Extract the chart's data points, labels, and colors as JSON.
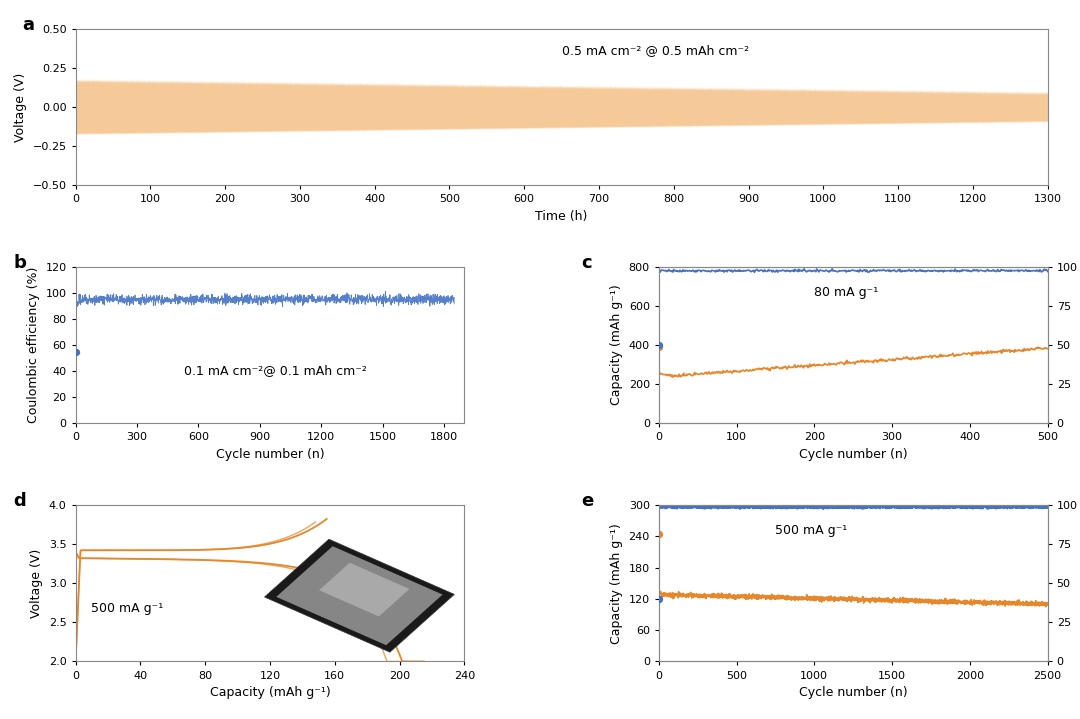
{
  "panel_a": {
    "label": "a",
    "xlabel": "Time (h)",
    "ylabel": "Voltage (V)",
    "xlim": [
      0,
      1300
    ],
    "ylim": [
      -0.5,
      0.5
    ],
    "xticks": [
      0,
      100,
      200,
      300,
      400,
      500,
      600,
      700,
      800,
      900,
      1000,
      1100,
      1200,
      1300
    ],
    "yticks": [
      -0.5,
      -0.25,
      0.0,
      0.25,
      0.5
    ],
    "annotation": "0.5 mA cm⁻² @ 0.5 mAh cm⁻²",
    "color": "#F5C087",
    "amplitude_start": 0.17,
    "amplitude_end": 0.09,
    "period": 2.0
  },
  "panel_b": {
    "label": "b",
    "xlabel": "Cycle number (n)",
    "ylabel": "Coulombic efficiency (%)",
    "xlim": [
      0,
      1900
    ],
    "ylim": [
      0,
      120
    ],
    "xticks": [
      0,
      300,
      600,
      900,
      1200,
      1500,
      1800
    ],
    "yticks": [
      0,
      20,
      40,
      60,
      80,
      100,
      120
    ],
    "annotation": "0.1 mA cm⁻²@ 0.1 mAh cm⁻²",
    "color": "#4472C4",
    "first_point_y": 55,
    "n_cycles": 1850
  },
  "panel_c": {
    "label": "c",
    "xlabel": "Cycle number (n)",
    "ylabel": "Capacity (mAh g⁻¹)",
    "ylabel2": "Coulombic efficiency (%)",
    "xlim": [
      0,
      500
    ],
    "ylim": [
      0,
      800
    ],
    "ylim2": [
      0,
      100
    ],
    "xticks": [
      0,
      100,
      200,
      300,
      400,
      500
    ],
    "yticks": [
      0,
      200,
      400,
      600,
      800
    ],
    "yticks2": [
      0,
      25,
      50,
      75,
      100
    ],
    "annotation": "80 mA g⁻¹",
    "color_capacity": "#E8872A",
    "color_ce": "#4472C4",
    "first_cap": 390,
    "ce_first": 50
  },
  "panel_d": {
    "label": "d",
    "xlabel": "Capacity (mAh g⁻¹)",
    "ylabel": "Voltage (V)",
    "xlim": [
      0,
      240
    ],
    "ylim": [
      2.0,
      4.0
    ],
    "xticks": [
      0,
      40,
      80,
      120,
      160,
      200,
      240
    ],
    "yticks": [
      2.0,
      2.5,
      3.0,
      3.5,
      4.0
    ],
    "annotation": "500 mA g⁻¹",
    "color": "#E8872A"
  },
  "panel_e": {
    "label": "e",
    "xlabel": "Cycle number (n)",
    "ylabel": "Capacity (mAh g⁻¹)",
    "ylabel2": "Coulombic efficiency (%)",
    "xlim": [
      0,
      2500
    ],
    "ylim": [
      0,
      300
    ],
    "ylim2": [
      0,
      100
    ],
    "xticks": [
      0,
      500,
      1000,
      1500,
      2000,
      2500
    ],
    "yticks": [
      0,
      60,
      120,
      180,
      240,
      300
    ],
    "yticks2": [
      0,
      25,
      50,
      75,
      100
    ],
    "annotation": "500 mA g⁻¹",
    "color_capacity": "#E8872A",
    "color_ce": "#4472C4",
    "first_cap": 245,
    "ce_first": 40,
    "steady_cap_start": 130,
    "steady_cap_end": 110
  },
  "background_color": "#FFFFFF",
  "panel_label_fontsize": 13,
  "axis_label_fontsize": 9,
  "tick_fontsize": 8,
  "annotation_fontsize": 9
}
